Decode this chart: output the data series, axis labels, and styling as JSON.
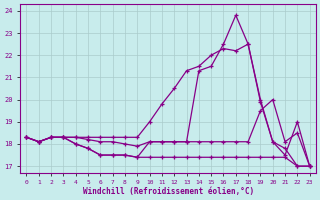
{
  "xlabel": "Windchill (Refroidissement éolien,°C)",
  "bg_color": "#c8ecec",
  "line_color": "#880088",
  "grid_color": "#aacccc",
  "xlim": [
    -0.5,
    23.5
  ],
  "ylim": [
    16.7,
    24.3
  ],
  "xticks": [
    0,
    1,
    2,
    3,
    4,
    5,
    6,
    7,
    8,
    9,
    10,
    11,
    12,
    13,
    14,
    15,
    16,
    17,
    18,
    19,
    20,
    21,
    22,
    23
  ],
  "yticks": [
    17,
    18,
    19,
    20,
    21,
    22,
    23,
    24
  ],
  "x": [
    0,
    1,
    2,
    3,
    4,
    5,
    6,
    7,
    8,
    9,
    10,
    11,
    12,
    13,
    14,
    15,
    16,
    17,
    18,
    19,
    20,
    21,
    22,
    23
  ],
  "lines": [
    [
      18.3,
      18.1,
      18.3,
      18.3,
      18.3,
      18.3,
      18.3,
      18.3,
      18.3,
      18.3,
      19.0,
      19.8,
      20.5,
      21.3,
      21.5,
      22.0,
      22.3,
      22.2,
      22.5,
      19.9,
      18.1,
      17.5,
      19.0,
      17.0
    ],
    [
      18.3,
      18.1,
      18.3,
      18.3,
      18.3,
      18.2,
      18.1,
      18.1,
      18.0,
      17.9,
      18.1,
      18.1,
      18.1,
      18.1,
      21.3,
      21.5,
      22.5,
      23.8,
      22.5,
      20.0,
      18.1,
      17.8,
      17.0,
      17.0
    ],
    [
      18.3,
      18.1,
      18.3,
      18.3,
      18.0,
      17.8,
      17.5,
      17.5,
      17.5,
      17.4,
      18.1,
      18.1,
      18.1,
      18.1,
      18.1,
      18.1,
      18.1,
      18.1,
      18.1,
      19.5,
      20.0,
      18.1,
      18.5,
      17.0
    ],
    [
      18.3,
      18.1,
      18.3,
      18.3,
      18.0,
      17.8,
      17.5,
      17.5,
      17.5,
      17.4,
      17.4,
      17.4,
      17.4,
      17.4,
      17.4,
      17.4,
      17.4,
      17.4,
      17.4,
      17.4,
      17.4,
      17.4,
      17.0,
      17.0
    ]
  ]
}
